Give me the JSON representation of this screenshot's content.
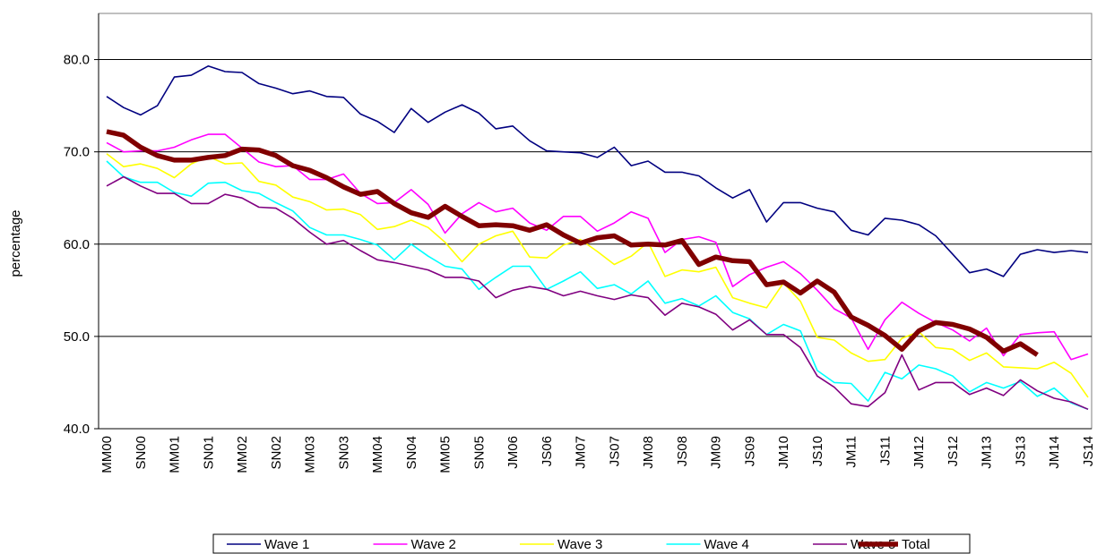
{
  "chart_data": {
    "type": "line",
    "y_label": "percentage",
    "categories": [
      "MM00",
      null,
      "SN00",
      null,
      "MM01",
      null,
      "SN01",
      null,
      "MM02",
      null,
      "SN02",
      null,
      "MM03",
      null,
      "SN03",
      null,
      "MM04",
      null,
      "SN04",
      null,
      "MM05",
      null,
      "SN05",
      null,
      "JM06",
      null,
      "JS06",
      null,
      "JM07",
      null,
      "JS07",
      null,
      "JM08",
      null,
      "JS08",
      null,
      "JM09",
      null,
      "JS09",
      null,
      "JM10",
      null,
      "JS10",
      null,
      "JM11",
      null,
      "JS11",
      null,
      "JM12",
      null,
      "JS12",
      null,
      "JM13",
      null,
      "JS13",
      null,
      "JM14",
      null,
      "JS14"
    ],
    "ylim": [
      40,
      85
    ],
    "yticks": [
      {
        "value": 40,
        "label": "40.0"
      },
      {
        "value": 50,
        "label": "50.0"
      },
      {
        "value": 60,
        "label": "60.0"
      },
      {
        "value": 70,
        "label": "70.0"
      },
      {
        "value": 80,
        "label": "80.0"
      }
    ],
    "grid": true,
    "legend": "bottom",
    "series": [
      {
        "name": "Wave 1",
        "color": "#000080",
        "values": [
          76.0,
          74.8,
          74.0,
          75.0,
          78.1,
          78.3,
          79.3,
          78.7,
          78.6,
          77.4,
          76.9,
          76.3,
          76.6,
          76.0,
          75.9,
          74.1,
          73.3,
          72.1,
          74.7,
          73.2,
          74.3,
          75.1,
          74.2,
          72.5,
          72.8,
          71.2,
          70.1,
          70.0,
          69.9,
          69.4,
          70.5,
          68.5,
          69.0,
          67.8,
          67.8,
          67.4,
          66.1,
          65.0,
          65.9,
          62.4,
          64.5,
          64.5,
          63.9,
          63.5,
          61.5,
          61.0,
          62.8,
          62.6,
          62.1,
          60.9,
          58.9,
          56.9,
          57.3,
          56.5,
          58.9,
          59.4,
          59.1,
          59.3,
          59.1
        ]
      },
      {
        "name": "Wave 2",
        "color": "#ff00ff",
        "values": [
          71.0,
          70.0,
          70.1,
          70.1,
          70.5,
          71.3,
          71.9,
          71.9,
          70.4,
          68.9,
          68.4,
          68.5,
          67.0,
          67.0,
          67.6,
          65.5,
          64.4,
          64.5,
          65.9,
          64.3,
          61.2,
          63.3,
          64.5,
          63.5,
          63.9,
          62.3,
          61.5,
          63.0,
          63.0,
          61.4,
          62.3,
          63.5,
          62.8,
          59.1,
          60.5,
          60.8,
          60.2,
          55.4,
          56.7,
          57.5,
          58.1,
          56.8,
          55.0,
          53.0,
          52.0,
          48.6,
          51.8,
          53.7,
          52.5,
          51.5,
          50.7,
          49.5,
          50.9,
          47.9,
          50.2,
          50.4,
          50.5,
          47.5,
          48.1
        ]
      },
      {
        "name": "Wave 3",
        "color": "#ffff00",
        "values": [
          69.8,
          68.4,
          68.7,
          68.2,
          67.2,
          68.7,
          69.5,
          68.7,
          68.8,
          66.8,
          66.4,
          65.1,
          64.6,
          63.7,
          63.8,
          63.2,
          61.6,
          61.9,
          62.6,
          61.8,
          60.2,
          58.1,
          60.0,
          60.9,
          61.4,
          58.6,
          58.5,
          59.9,
          60.5,
          59.2,
          57.8,
          58.7,
          60.2,
          56.5,
          57.2,
          57.0,
          57.5,
          54.2,
          53.6,
          53.1,
          55.8,
          53.8,
          49.9,
          49.6,
          48.2,
          47.3,
          47.5,
          49.8,
          50.5,
          48.8,
          48.6,
          47.4,
          48.2,
          46.7,
          46.6,
          46.5,
          47.2,
          46.0,
          43.4
        ]
      },
      {
        "name": "Wave 4",
        "color": "#00ffff",
        "values": [
          69.0,
          67.3,
          66.7,
          66.7,
          65.6,
          65.2,
          66.6,
          66.7,
          65.8,
          65.5,
          64.5,
          63.6,
          61.8,
          61.0,
          61.0,
          60.5,
          59.9,
          58.3,
          60.0,
          58.7,
          57.6,
          57.3,
          55.1,
          56.4,
          57.6,
          57.6,
          55.1,
          56.0,
          57.0,
          55.2,
          55.6,
          54.6,
          56.0,
          53.6,
          54.1,
          53.3,
          54.4,
          52.6,
          51.9,
          50.2,
          51.3,
          50.6,
          46.3,
          45.0,
          44.9,
          43.0,
          46.1,
          45.4,
          46.9,
          46.5,
          45.7,
          44.0,
          45.0,
          44.4,
          45.1,
          43.5,
          44.4,
          42.8,
          42.1
        ]
      },
      {
        "name": "Wave 5",
        "color": "#800080",
        "values": [
          66.3,
          67.3,
          66.3,
          65.5,
          65.5,
          64.4,
          64.4,
          65.4,
          65.0,
          64.0,
          63.9,
          62.8,
          61.3,
          60.0,
          60.4,
          59.3,
          58.3,
          58.0,
          57.6,
          57.2,
          56.4,
          56.4,
          56.0,
          54.2,
          55.0,
          55.4,
          55.1,
          54.4,
          54.9,
          54.4,
          54.0,
          54.5,
          54.2,
          52.3,
          53.6,
          53.2,
          52.4,
          50.7,
          51.8,
          50.2,
          50.2,
          48.8,
          45.7,
          44.5,
          42.7,
          42.4,
          43.9,
          48.0,
          44.2,
          45.0,
          45.0,
          43.7,
          44.4,
          43.6,
          45.3,
          44.1,
          43.3,
          42.9,
          42.1
        ]
      },
      {
        "name": "Total",
        "color": "#800000",
        "values": [
          72.2,
          71.8,
          70.5,
          69.6,
          69.1,
          69.1,
          69.4,
          69.6,
          70.3,
          70.2,
          69.6,
          68.5,
          68.0,
          67.2,
          66.2,
          65.4,
          65.7,
          64.4,
          63.4,
          62.9,
          64.1,
          63.0,
          62.0,
          62.1,
          62.0,
          61.5,
          62.1,
          61.0,
          60.1,
          60.7,
          60.9,
          59.9,
          60.0,
          59.9,
          60.4,
          57.8,
          58.6,
          58.2,
          58.1,
          55.6,
          55.9,
          54.7,
          56.0,
          54.8,
          52.1,
          51.2,
          50.1,
          48.6,
          50.6,
          51.5,
          51.3,
          50.8,
          49.9,
          48.4,
          49.2,
          48.0,
          null,
          null,
          null
        ]
      }
    ]
  }
}
